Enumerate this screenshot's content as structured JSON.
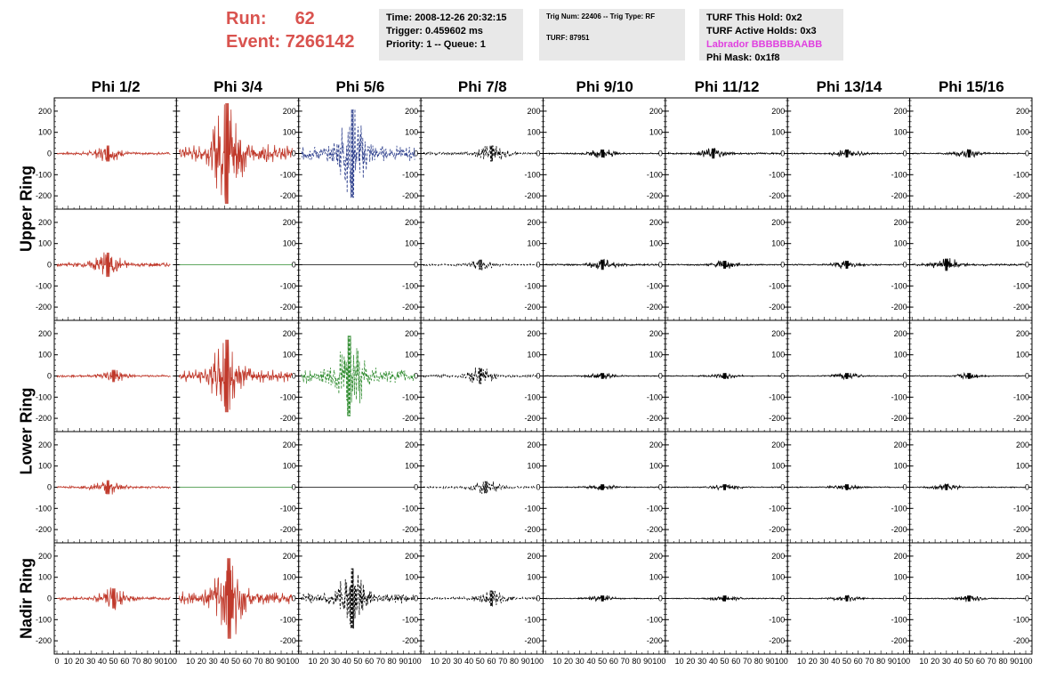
{
  "header": {
    "run_label": "Run:",
    "run_value": "62",
    "event_label": "Event:",
    "event_value": "7266142"
  },
  "info1": {
    "time": "Time: 2008-12-26 20:32:15",
    "trigger": "Trigger: 0.459602 ms",
    "priority": "Priority: 1 -- Queue: 1"
  },
  "info2": {
    "trig": "Trig Num: 22406 -- Trig Type: RF",
    "turf": "TURF: 87951"
  },
  "info3": {
    "hold": "TURF This Hold: 0x2",
    "active": "TURF Active Holds: 0x3",
    "labrador": "Labrador BBBBBBAABB",
    "mask": "Phi Mask: 0x1f8"
  },
  "columns": [
    "Phi 1/2",
    "Phi 3/4",
    "Phi 5/6",
    "Phi 7/8",
    "Phi 9/10",
    "Phi 11/12",
    "Phi 13/14",
    "Phi 15/16"
  ],
  "rings": [
    "Upper Ring",
    "Lower Ring",
    "Nadir Ring"
  ],
  "colors": {
    "red": "#c0392b",
    "blue": "#2c3e8c",
    "green": "#2e8b2e",
    "black": "#000000",
    "accent": "#d9534f",
    "magenta": "#e040e0"
  },
  "chart_data": {
    "type": "line",
    "xlim": [
      0,
      100
    ],
    "ylim": [
      -250,
      250
    ],
    "yticks": [
      -200,
      -100,
      0,
      100,
      200
    ],
    "xticks": [
      0,
      10,
      20,
      30,
      40,
      50,
      60,
      70,
      80,
      90,
      100
    ],
    "rows": 5,
    "cols": 8,
    "panels": [
      [
        {
          "color": "red",
          "style": "solid",
          "amp": 40,
          "peak": 45
        },
        {
          "color": "red",
          "style": "solid",
          "amp": 250,
          "peak": 42
        },
        {
          "color": "blue",
          "style": "dashed",
          "amp": 220,
          "peak": 45
        },
        {
          "color": "black",
          "style": "dashed",
          "amp": 40,
          "peak": 60
        },
        {
          "color": "black",
          "style": "solid",
          "amp": 20,
          "peak": 50
        },
        {
          "color": "black",
          "style": "solid",
          "amp": 25,
          "peak": 40
        },
        {
          "color": "black",
          "style": "solid",
          "amp": 20,
          "peak": 50
        },
        {
          "color": "black",
          "style": "solid",
          "amp": 20,
          "peak": 50
        }
      ],
      [
        {
          "color": "red",
          "style": "solid",
          "amp": 60,
          "peak": 45
        },
        {
          "color": "green",
          "style": "flat",
          "amp": 0,
          "peak": 50
        },
        {
          "color": "black",
          "style": "flat",
          "amp": 0,
          "peak": 50
        },
        {
          "color": "black",
          "style": "dashed",
          "amp": 25,
          "peak": 50
        },
        {
          "color": "black",
          "style": "solid",
          "amp": 25,
          "peak": 50
        },
        {
          "color": "black",
          "style": "solid",
          "amp": 20,
          "peak": 50
        },
        {
          "color": "black",
          "style": "solid",
          "amp": 20,
          "peak": 50
        },
        {
          "color": "black",
          "style": "solid",
          "amp": 30,
          "peak": 30
        }
      ],
      [
        {
          "color": "red",
          "style": "solid",
          "amp": 30,
          "peak": 50
        },
        {
          "color": "red",
          "style": "solid",
          "amp": 180,
          "peak": 42
        },
        {
          "color": "green",
          "style": "dashed",
          "amp": 200,
          "peak": 42
        },
        {
          "color": "black",
          "style": "dashed",
          "amp": 40,
          "peak": 50
        },
        {
          "color": "black",
          "style": "solid",
          "amp": 15,
          "peak": 50
        },
        {
          "color": "black",
          "style": "solid",
          "amp": 15,
          "peak": 50
        },
        {
          "color": "black",
          "style": "solid",
          "amp": 15,
          "peak": 50
        },
        {
          "color": "black",
          "style": "solid",
          "amp": 15,
          "peak": 50
        }
      ],
      [
        {
          "color": "red",
          "style": "solid",
          "amp": 35,
          "peak": 45
        },
        {
          "color": "green",
          "style": "flat",
          "amp": 0,
          "peak": 50
        },
        {
          "color": "black",
          "style": "flat",
          "amp": 0,
          "peak": 50
        },
        {
          "color": "black",
          "style": "dashed",
          "amp": 30,
          "peak": 55
        },
        {
          "color": "black",
          "style": "solid",
          "amp": 15,
          "peak": 50
        },
        {
          "color": "black",
          "style": "solid",
          "amp": 15,
          "peak": 50
        },
        {
          "color": "black",
          "style": "solid",
          "amp": 15,
          "peak": 50
        },
        {
          "color": "black",
          "style": "solid",
          "amp": 15,
          "peak": 30
        }
      ],
      [
        {
          "color": "red",
          "style": "solid",
          "amp": 50,
          "peak": 50
        },
        {
          "color": "red",
          "style": "solid",
          "amp": 200,
          "peak": 44
        },
        {
          "color": "black",
          "style": "dashed",
          "amp": 150,
          "peak": 45
        },
        {
          "color": "black",
          "style": "dashed",
          "amp": 40,
          "peak": 60
        },
        {
          "color": "black",
          "style": "solid",
          "amp": 15,
          "peak": 50
        },
        {
          "color": "black",
          "style": "solid",
          "amp": 15,
          "peak": 50
        },
        {
          "color": "black",
          "style": "solid",
          "amp": 15,
          "peak": 50
        },
        {
          "color": "black",
          "style": "solid",
          "amp": 15,
          "peak": 50
        }
      ]
    ]
  }
}
